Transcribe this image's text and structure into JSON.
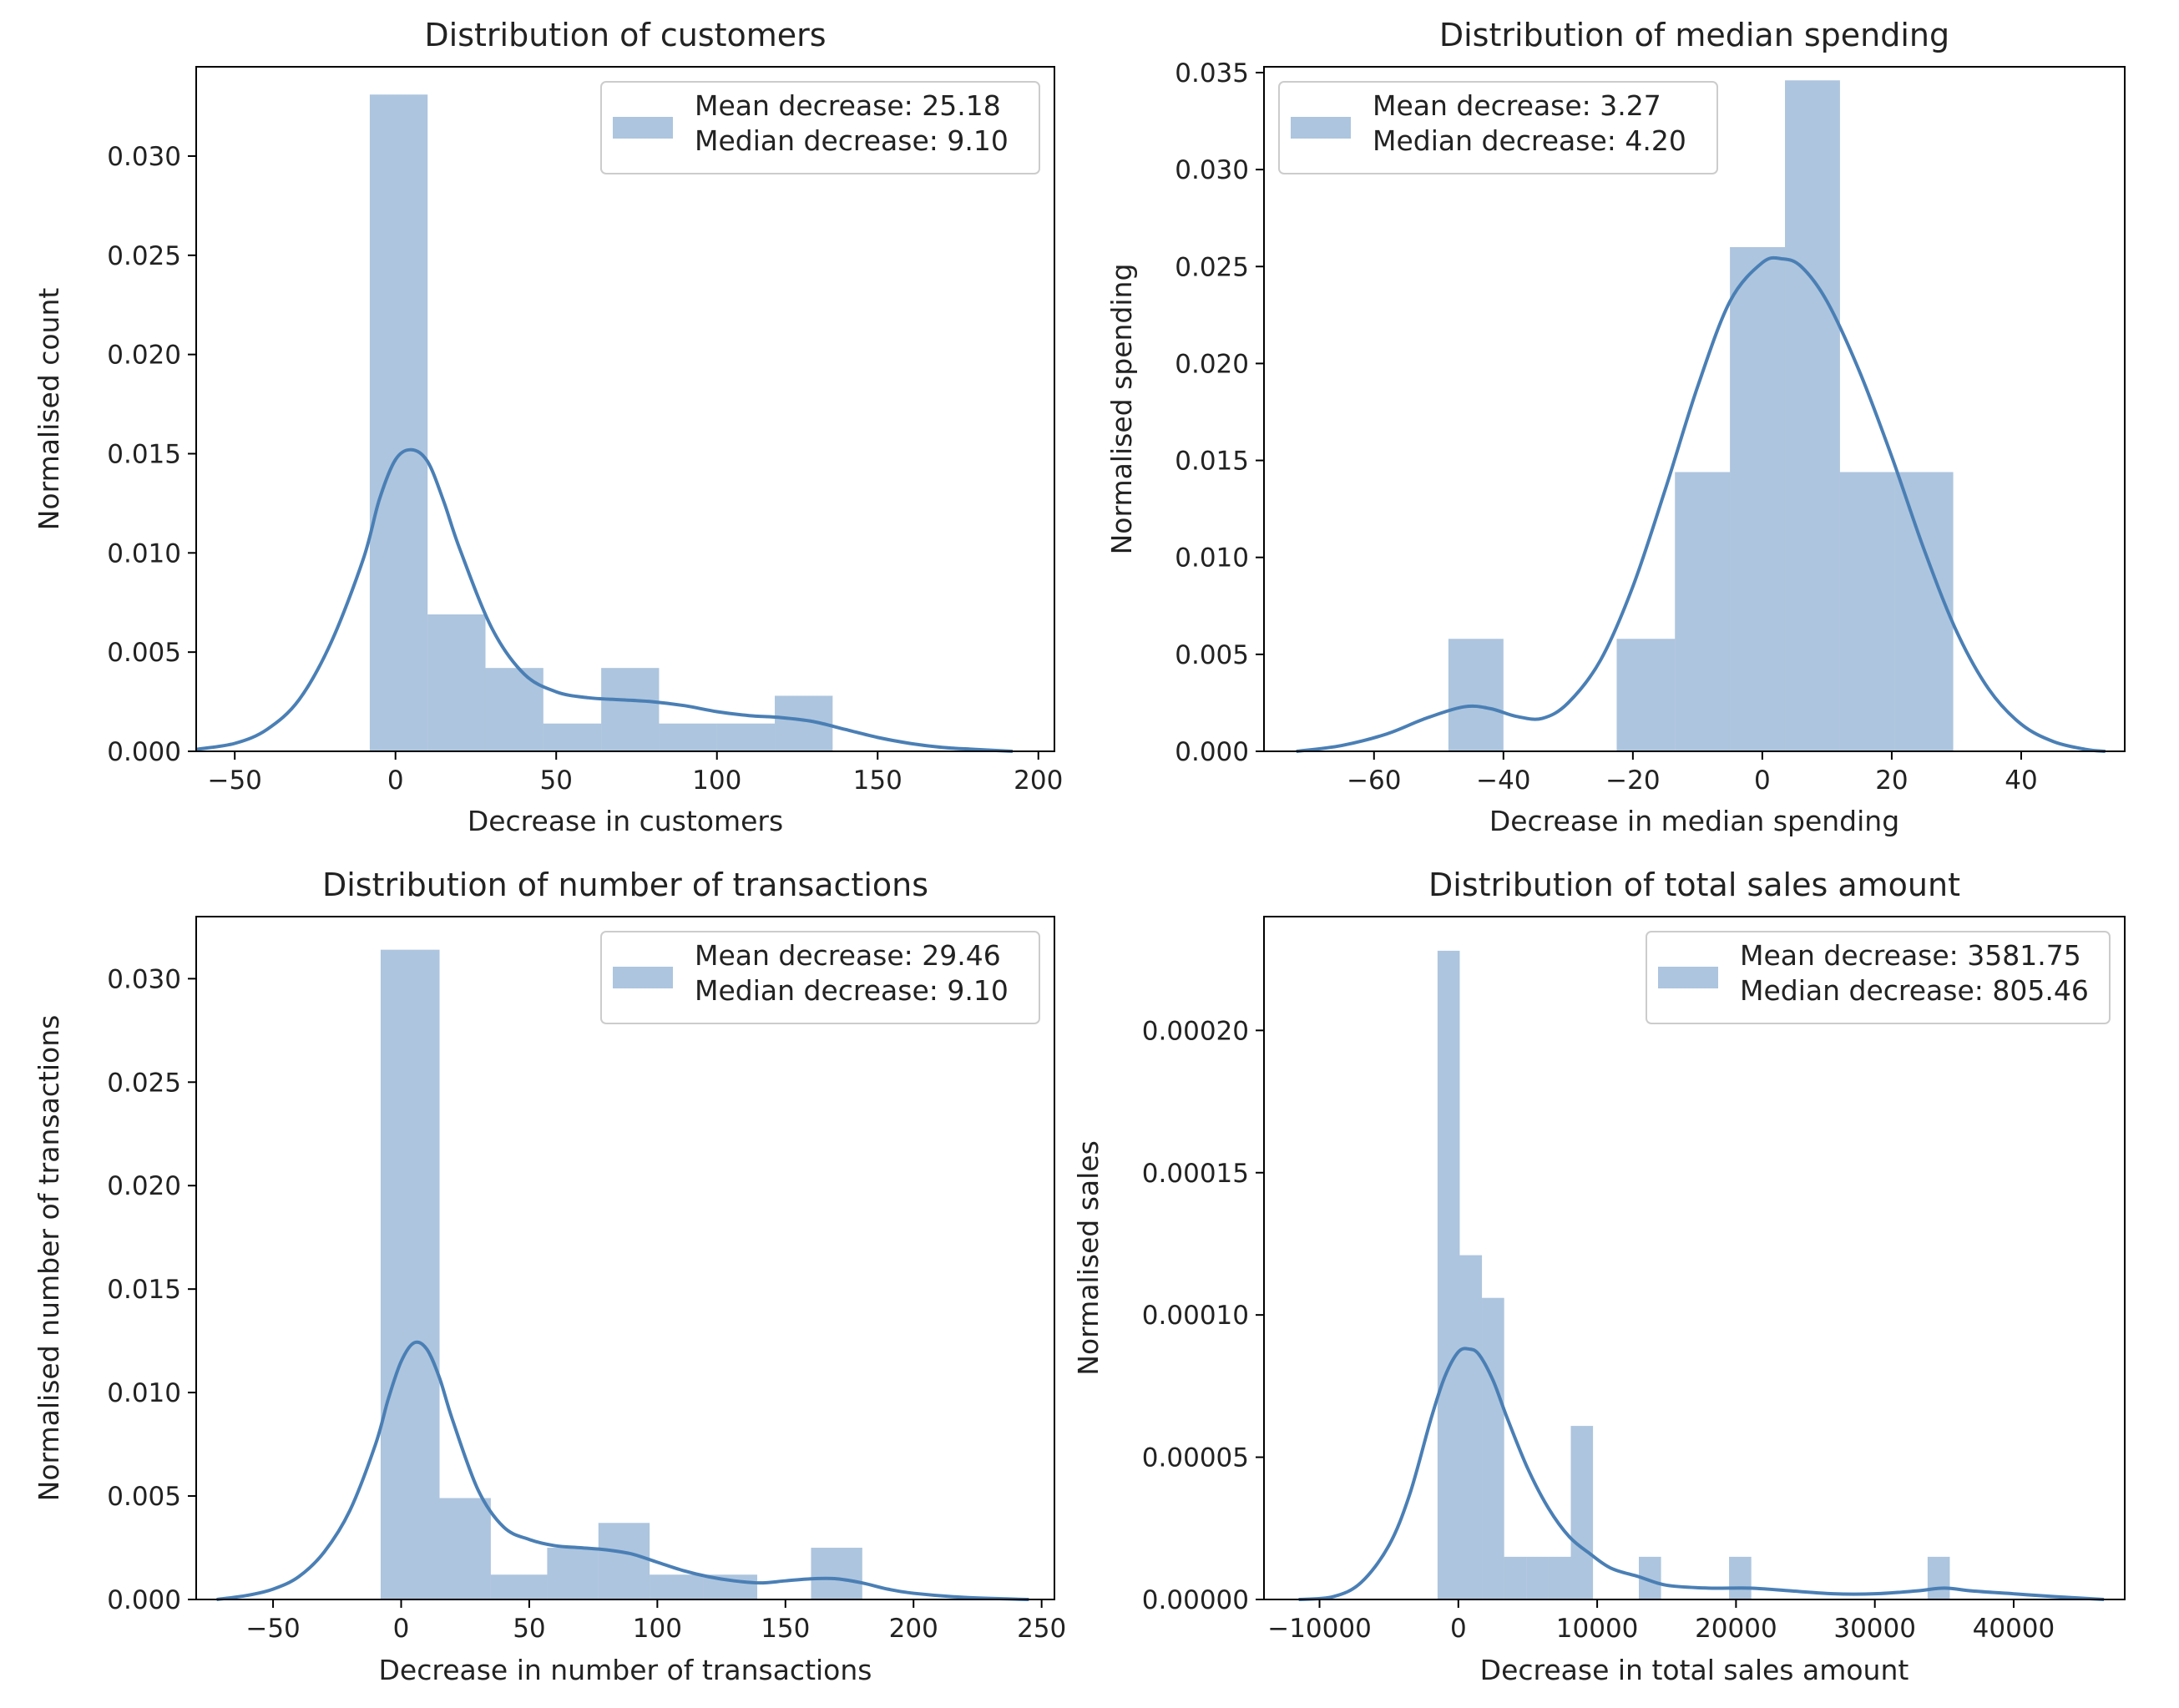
{
  "colors": {
    "hist_fill": "#4a7fb5",
    "kde_line": "#4a7fb5",
    "axes": "#000000",
    "background": "#ffffff"
  },
  "chart_data": [
    {
      "type": "bar",
      "subtype": "histogram with kde line",
      "title": "Distribution of customers",
      "xlabel": "Decrease in customers",
      "ylabel": "Normalised count",
      "xlim": [
        -62,
        205
      ],
      "ylim": [
        0,
        0.0345
      ],
      "xticks": [
        -50,
        0,
        50,
        100,
        150,
        200
      ],
      "xtick_labels": [
        "−50",
        "0",
        "50",
        "100",
        "150",
        "200"
      ],
      "yticks": [
        0,
        0.005,
        0.01,
        0.015,
        0.02,
        0.025,
        0.03
      ],
      "ytick_labels": [
        "0.000",
        "0.005",
        "0.010",
        "0.015",
        "0.020",
        "0.025",
        "0.030"
      ],
      "legend_position": "top-right",
      "legend": [
        "Mean decrease: 25.18",
        "Median decrease: 9.10"
      ],
      "bins": [
        {
          "x0": -8,
          "x1": 10,
          "value": 0.0331
        },
        {
          "x0": 10,
          "x1": 28,
          "value": 0.0069
        },
        {
          "x0": 28,
          "x1": 46,
          "value": 0.0042
        },
        {
          "x0": 46,
          "x1": 64,
          "value": 0.0014
        },
        {
          "x0": 64,
          "x1": 82,
          "value": 0.0042
        },
        {
          "x0": 82,
          "x1": 100,
          "value": 0.0014
        },
        {
          "x0": 100,
          "x1": 118,
          "value": 0.0014
        },
        {
          "x0": 118,
          "x1": 136,
          "value": 0.0028
        }
      ],
      "kde": {
        "x": [
          -62,
          -50,
          -40,
          -30,
          -20,
          -10,
          -5,
          0,
          5,
          10,
          15,
          20,
          30,
          40,
          50,
          60,
          70,
          80,
          90,
          100,
          110,
          120,
          130,
          140,
          150,
          160,
          170,
          180,
          192
        ],
        "y": [
          0.0001,
          0.0004,
          0.0011,
          0.0026,
          0.0055,
          0.0097,
          0.0127,
          0.0147,
          0.0152,
          0.0146,
          0.0126,
          0.0102,
          0.0062,
          0.0039,
          0.003,
          0.0027,
          0.0026,
          0.0025,
          0.0023,
          0.002,
          0.0018,
          0.0017,
          0.0015,
          0.0011,
          0.0007,
          0.0004,
          0.0002,
          0.0001,
          0.0
        ]
      }
    },
    {
      "type": "bar",
      "subtype": "histogram with kde line",
      "title": "Distribution of median spending",
      "xlabel": "Decrease in median spending",
      "ylabel": "Normalised spending",
      "xlim": [
        -77,
        56
      ],
      "ylim": [
        0,
        0.0353
      ],
      "xticks": [
        -60,
        -40,
        -20,
        0,
        20,
        40
      ],
      "xtick_labels": [
        "−60",
        "−40",
        "−20",
        "0",
        "20",
        "40"
      ],
      "yticks": [
        0,
        0.005,
        0.01,
        0.015,
        0.02,
        0.025,
        0.03,
        0.035
      ],
      "ytick_labels": [
        "0.000",
        "0.005",
        "0.010",
        "0.015",
        "0.020",
        "0.025",
        "0.030",
        "0.035"
      ],
      "legend_position": "top-left",
      "legend": [
        "Mean decrease: 3.27",
        "Median decrease: 4.20"
      ],
      "bins": [
        {
          "x0": -48.5,
          "x1": -40,
          "value": 0.0058
        },
        {
          "x0": -40,
          "x1": -31.5,
          "value": 0.0
        },
        {
          "x0": -31.5,
          "x1": -22.5,
          "value": 0.0
        },
        {
          "x0": -22.5,
          "x1": -13.5,
          "value": 0.0058
        },
        {
          "x0": -13.5,
          "x1": -5,
          "value": 0.0144
        },
        {
          "x0": -5,
          "x1": 3.5,
          "value": 0.026
        },
        {
          "x0": 3.5,
          "x1": 12,
          "value": 0.0346
        },
        {
          "x0": 12,
          "x1": 20.5,
          "value": 0.0144
        },
        {
          "x0": 20.5,
          "x1": 29.5,
          "value": 0.0144
        }
      ],
      "kde": {
        "x": [
          -72,
          -65,
          -58,
          -52,
          -46,
          -42,
          -38,
          -34,
          -30,
          -25,
          -20,
          -15,
          -10,
          -5,
          0,
          3,
          6,
          10,
          15,
          20,
          25,
          30,
          35,
          40,
          45,
          50,
          53
        ],
        "y": [
          0.0,
          0.0003,
          0.0009,
          0.0017,
          0.0023,
          0.0022,
          0.0018,
          0.0017,
          0.0025,
          0.0047,
          0.0085,
          0.0135,
          0.0188,
          0.0232,
          0.0252,
          0.0254,
          0.025,
          0.0232,
          0.0196,
          0.0152,
          0.0104,
          0.0062,
          0.0032,
          0.0014,
          0.0005,
          0.0001,
          0.0
        ]
      }
    },
    {
      "type": "bar",
      "subtype": "histogram with kde line",
      "title": "Distribution of number of transactions",
      "xlabel": "Decrease in number of transactions",
      "ylabel": "Normalised number of transactions",
      "xlim": [
        -80,
        255
      ],
      "ylim": [
        0,
        0.033
      ],
      "xticks": [
        -50,
        0,
        50,
        100,
        150,
        200,
        250
      ],
      "xtick_labels": [
        "−50",
        "0",
        "50",
        "100",
        "150",
        "200",
        "250"
      ],
      "yticks": [
        0,
        0.005,
        0.01,
        0.015,
        0.02,
        0.025,
        0.03
      ],
      "ytick_labels": [
        "0.000",
        "0.005",
        "0.010",
        "0.015",
        "0.020",
        "0.025",
        "0.030"
      ],
      "legend_position": "top-right",
      "legend": [
        "Mean decrease: 29.46",
        "Median decrease: 9.10"
      ],
      "bins": [
        {
          "x0": -8,
          "x1": 15,
          "value": 0.0314
        },
        {
          "x0": 15,
          "x1": 35,
          "value": 0.0049
        },
        {
          "x0": 35,
          "x1": 57,
          "value": 0.0012
        },
        {
          "x0": 57,
          "x1": 77,
          "value": 0.0025
        },
        {
          "x0": 77,
          "x1": 97,
          "value": 0.0037
        },
        {
          "x0": 97,
          "x1": 118,
          "value": 0.0012
        },
        {
          "x0": 118,
          "x1": 139,
          "value": 0.0012
        },
        {
          "x0": 139,
          "x1": 160,
          "value": 0.0
        },
        {
          "x0": 160,
          "x1": 180,
          "value": 0.0025
        }
      ],
      "kde": {
        "x": [
          -72,
          -60,
          -50,
          -40,
          -30,
          -20,
          -10,
          -5,
          0,
          5,
          10,
          15,
          20,
          30,
          40,
          50,
          60,
          70,
          80,
          90,
          100,
          110,
          120,
          130,
          140,
          150,
          160,
          170,
          180,
          190,
          200,
          220,
          245
        ],
        "y": [
          0.0,
          0.0002,
          0.0005,
          0.0011,
          0.0023,
          0.0043,
          0.0075,
          0.0097,
          0.0115,
          0.0124,
          0.0121,
          0.0107,
          0.0087,
          0.0053,
          0.0035,
          0.0029,
          0.0026,
          0.0025,
          0.0024,
          0.0022,
          0.0018,
          0.0014,
          0.0011,
          0.0009,
          0.0008,
          0.0009,
          0.001,
          0.001,
          0.0008,
          0.0005,
          0.0003,
          0.0001,
          0.0
        ]
      }
    },
    {
      "type": "bar",
      "subtype": "histogram with kde line",
      "title": "Distribution of total sales amount",
      "xlabel": "Decrease in total sales amount",
      "ylabel": "Normalised sales",
      "xlim": [
        -14000,
        48000
      ],
      "ylim": [
        0,
        0.00024
      ],
      "xticks": [
        -10000,
        0,
        10000,
        20000,
        30000,
        40000
      ],
      "xtick_labels": [
        "−10000",
        "0",
        "10000",
        "20000",
        "30000",
        "40000"
      ],
      "yticks": [
        0,
        5e-05,
        0.0001,
        0.00015,
        0.0002
      ],
      "ytick_labels": [
        "0.00000",
        "0.00005",
        "0.00010",
        "0.00015",
        "0.00020"
      ],
      "legend_position": "top-right",
      "legend": [
        "Mean decrease: 3581.75",
        "Median decrease: 805.46"
      ],
      "bins": [
        {
          "x0": -1500,
          "x1": 100,
          "value": 0.000228
        },
        {
          "x0": 100,
          "x1": 1700,
          "value": 0.000121
        },
        {
          "x0": 1700,
          "x1": 3300,
          "value": 0.000106
        },
        {
          "x0": 3300,
          "x1": 4900,
          "value": 1.5e-05
        },
        {
          "x0": 4900,
          "x1": 6500,
          "value": 1.5e-05
        },
        {
          "x0": 6500,
          "x1": 8100,
          "value": 1.5e-05
        },
        {
          "x0": 8100,
          "x1": 9700,
          "value": 6.1e-05
        },
        {
          "x0": 13000,
          "x1": 14600,
          "value": 1.5e-05
        },
        {
          "x0": 19500,
          "x1": 21100,
          "value": 1.5e-05
        },
        {
          "x0": 33800,
          "x1": 35400,
          "value": 1.5e-05
        }
      ],
      "kde": {
        "x": [
          -11500,
          -9000,
          -7000,
          -5000,
          -3500,
          -2000,
          -1000,
          0,
          800,
          1500,
          2500,
          3500,
          5000,
          6500,
          8000,
          9500,
          11000,
          13000,
          15000,
          18000,
          21000,
          24000,
          27000,
          30000,
          33000,
          35000,
          37000,
          40000,
          43000,
          46500
        ],
        "y": [
          0.0,
          1e-06,
          6e-06,
          1.9e-05,
          3.7e-05,
          6.3e-05,
          7.8e-05,
          8.7e-05,
          8.8e-05,
          8.6e-05,
          7.7e-05,
          6.4e-05,
          4.6e-05,
          3.2e-05,
          2.2e-05,
          1.6e-05,
          1.1e-05,
          8e-06,
          5e-06,
          4e-06,
          4e-06,
          3e-06,
          2e-06,
          2e-06,
          3e-06,
          4e-06,
          3e-06,
          2e-06,
          1e-06,
          0.0
        ]
      }
    }
  ]
}
